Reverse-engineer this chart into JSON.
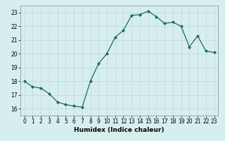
{
  "x": [
    0,
    1,
    2,
    3,
    4,
    5,
    6,
    7,
    8,
    9,
    10,
    11,
    12,
    13,
    14,
    15,
    16,
    17,
    18,
    19,
    20,
    21,
    22,
    23
  ],
  "y": [
    18.0,
    17.6,
    17.5,
    17.1,
    16.5,
    16.3,
    16.2,
    16.1,
    18.0,
    19.3,
    20.0,
    21.2,
    21.7,
    22.8,
    22.85,
    23.1,
    22.7,
    22.2,
    22.3,
    22.0,
    20.5,
    21.3,
    20.2,
    20.1
  ],
  "line_color": "#1a6b5a",
  "marker": "D",
  "marker_size": 2,
  "bg_color": "#d6eeee",
  "grid_color": "#c0d8d8",
  "xlabel": "Humidex (Indice chaleur)",
  "xlim": [
    -0.5,
    23.5
  ],
  "ylim": [
    15.5,
    23.5
  ],
  "yticks": [
    16,
    17,
    18,
    19,
    20,
    21,
    22,
    23
  ],
  "xticks": [
    0,
    1,
    2,
    3,
    4,
    5,
    6,
    7,
    8,
    9,
    10,
    11,
    12,
    13,
    14,
    15,
    16,
    17,
    18,
    19,
    20,
    21,
    22,
    23
  ],
  "label_fontsize": 6.5,
  "tick_fontsize": 5.5
}
